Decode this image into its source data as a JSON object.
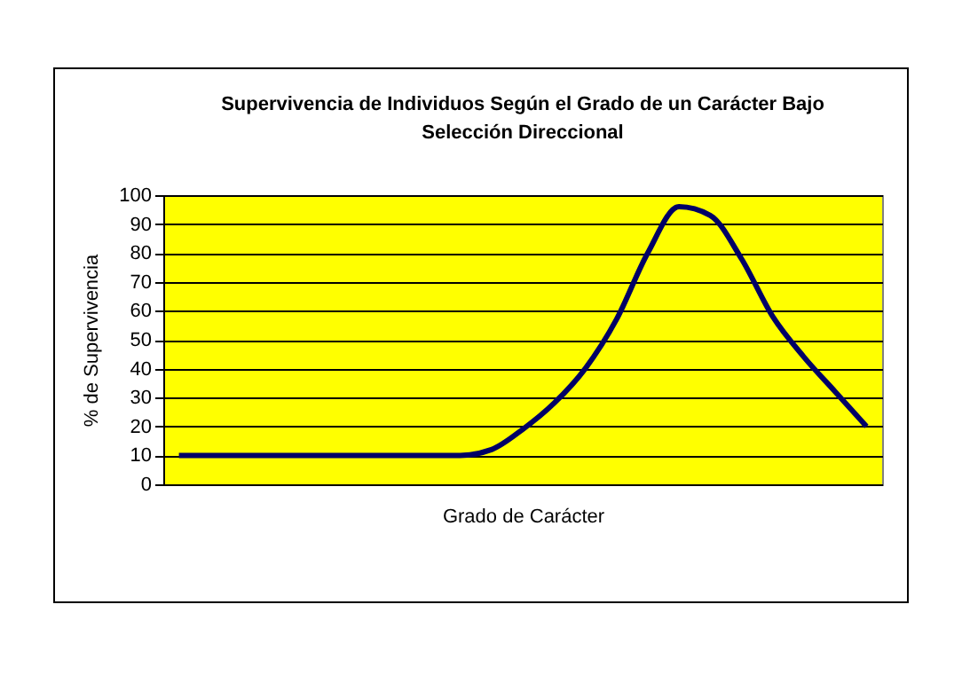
{
  "chart_data": {
    "type": "line",
    "title": "Supervivencia de Individuos Según el Grado de un Carácter Bajo Selección Direccional",
    "xlabel": "Grado de Carácter",
    "ylabel": "% de Supervivencia",
    "categories": [
      null,
      null,
      null,
      null,
      null,
      null,
      null,
      null,
      null,
      null,
      null,
      null,
      null,
      null,
      null,
      null,
      null,
      null,
      null,
      null,
      null,
      null,
      null
    ],
    "series": [
      {
        "color": "#000066",
        "values": [
          10,
          10,
          10,
          10,
          10,
          10,
          10,
          10,
          10,
          10,
          12,
          19,
          28,
          40,
          57,
          80,
          96,
          93,
          78,
          58,
          44,
          32,
          20
        ]
      }
    ],
    "ylim": [
      0,
      100
    ],
    "yticks": [
      0,
      10,
      20,
      30,
      40,
      50,
      60,
      70,
      80,
      90,
      100
    ],
    "grid": "y",
    "marker": "none",
    "line_style": "solid",
    "tick_labels": "y"
  }
}
